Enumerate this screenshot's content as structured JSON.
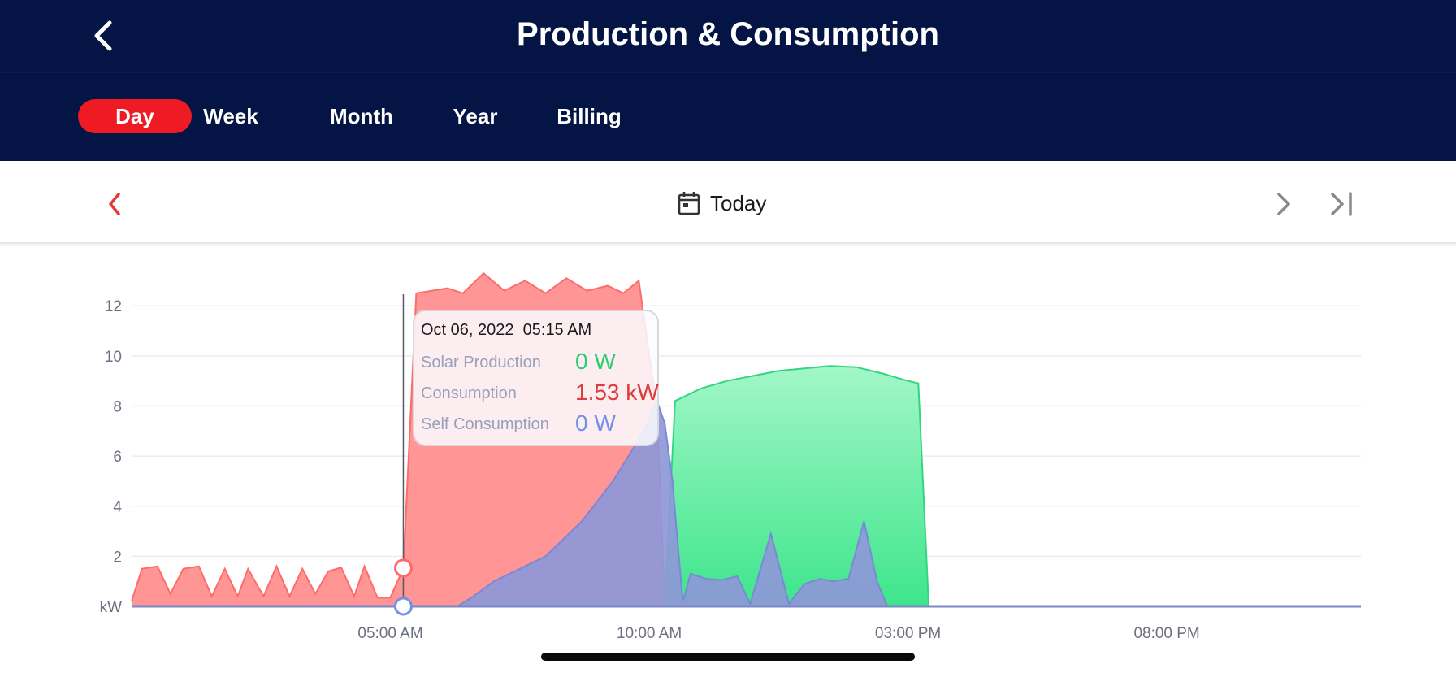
{
  "header": {
    "title": "Production & Consumption",
    "back_icon": "chevron-left-icon"
  },
  "tabs": [
    {
      "label": "Day",
      "active": true
    },
    {
      "label": "Week",
      "active": false
    },
    {
      "label": "Month",
      "active": false
    },
    {
      "label": "Year",
      "active": false
    },
    {
      "label": "Billing",
      "active": false
    }
  ],
  "date_nav": {
    "label": "Today",
    "calendar_icon": "calendar-icon",
    "prev_icon": "chevron-left-icon",
    "next_icon": "chevron-right-icon",
    "last_icon": "skip-to-end-icon"
  },
  "tooltip": {
    "datetime": "Oct 06, 2022  05:15 AM",
    "rows": [
      {
        "label": "Solar Production",
        "value": "0 W",
        "color": "#2ecc71"
      },
      {
        "label": "Consumption",
        "value": "1.53 kW",
        "color": "#e03a3a"
      },
      {
        "label": "Self Consumption",
        "value": "0 W",
        "color": "#6f8fe8"
      }
    ]
  },
  "colors": {
    "header_bg": "#041444",
    "active_tab": "#ee1b24",
    "production": "#3ee58c",
    "consumption": "#ff7d7d",
    "self_consumption": "#8e98d8"
  },
  "chart_data": {
    "type": "area",
    "ylabel": "kW",
    "ylim": [
      0,
      13.5
    ],
    "yticks": [
      2,
      4,
      6,
      8,
      10,
      12
    ],
    "x_ticks": [
      {
        "h": 5,
        "label": "05:00 AM"
      },
      {
        "h": 10,
        "label": "10:00 AM"
      },
      {
        "h": 15,
        "label": "03:00 PM"
      },
      {
        "h": 20,
        "label": "08:00 PM"
      }
    ],
    "x_range_hours": [
      0,
      23.75
    ],
    "cursor_hour": 5.25,
    "grid": true,
    "series": [
      {
        "name": "Solar Production",
        "color": "#3ee58c",
        "points": [
          [
            0,
            0
          ],
          [
            10.3,
            0
          ],
          [
            10.5,
            8.2
          ],
          [
            11.0,
            8.7
          ],
          [
            11.5,
            9.0
          ],
          [
            12.0,
            9.2
          ],
          [
            12.5,
            9.4
          ],
          [
            13.0,
            9.5
          ],
          [
            13.5,
            9.6
          ],
          [
            14.0,
            9.55
          ],
          [
            14.5,
            9.3
          ],
          [
            15.0,
            9.0
          ],
          [
            15.2,
            8.9
          ],
          [
            15.4,
            0
          ],
          [
            23.75,
            0
          ]
        ]
      },
      {
        "name": "Consumption",
        "color": "#ff7d7d",
        "points": [
          [
            0,
            0.2
          ],
          [
            0.2,
            1.5
          ],
          [
            0.5,
            1.6
          ],
          [
            0.75,
            0.5
          ],
          [
            1.0,
            1.5
          ],
          [
            1.3,
            1.6
          ],
          [
            1.55,
            0.4
          ],
          [
            1.8,
            1.5
          ],
          [
            2.05,
            0.4
          ],
          [
            2.25,
            1.5
          ],
          [
            2.55,
            0.4
          ],
          [
            2.8,
            1.6
          ],
          [
            3.05,
            0.4
          ],
          [
            3.3,
            1.5
          ],
          [
            3.55,
            0.5
          ],
          [
            3.8,
            1.4
          ],
          [
            4.05,
            1.55
          ],
          [
            4.3,
            0.4
          ],
          [
            4.5,
            1.6
          ],
          [
            4.75,
            0.35
          ],
          [
            5.0,
            0.35
          ],
          [
            5.25,
            1.53
          ],
          [
            5.5,
            12.5
          ],
          [
            5.8,
            12.6
          ],
          [
            6.1,
            12.7
          ],
          [
            6.4,
            12.5
          ],
          [
            6.8,
            13.3
          ],
          [
            7.2,
            12.6
          ],
          [
            7.6,
            13.0
          ],
          [
            8.0,
            12.5
          ],
          [
            8.4,
            13.1
          ],
          [
            8.8,
            12.6
          ],
          [
            9.2,
            12.8
          ],
          [
            9.5,
            12.5
          ],
          [
            9.8,
            13.0
          ],
          [
            10.0,
            10.0
          ],
          [
            10.15,
            8.0
          ],
          [
            10.3,
            0
          ],
          [
            23.75,
            0
          ]
        ]
      },
      {
        "name": "Self Consumption",
        "color": "#8e98d8",
        "points": [
          [
            0,
            0
          ],
          [
            6.3,
            0
          ],
          [
            6.6,
            0.4
          ],
          [
            7.0,
            1.0
          ],
          [
            7.5,
            1.5
          ],
          [
            8.0,
            2.0
          ],
          [
            8.3,
            2.6
          ],
          [
            8.7,
            3.4
          ],
          [
            9.0,
            4.2
          ],
          [
            9.3,
            5.0
          ],
          [
            9.6,
            6.0
          ],
          [
            9.9,
            7.0
          ],
          [
            10.15,
            8.2
          ],
          [
            10.3,
            7.3
          ],
          [
            10.45,
            5.0
          ],
          [
            10.55,
            2.5
          ],
          [
            10.65,
            0.2
          ],
          [
            10.8,
            1.3
          ],
          [
            11.1,
            1.1
          ],
          [
            11.4,
            1.05
          ],
          [
            11.7,
            1.2
          ],
          [
            11.95,
            0.1
          ],
          [
            12.35,
            2.9
          ],
          [
            12.7,
            0.1
          ],
          [
            13.0,
            0.9
          ],
          [
            13.3,
            1.1
          ],
          [
            13.55,
            1.0
          ],
          [
            13.85,
            1.1
          ],
          [
            14.15,
            3.4
          ],
          [
            14.4,
            1.0
          ],
          [
            14.6,
            0
          ],
          [
            23.75,
            0
          ]
        ]
      }
    ]
  }
}
